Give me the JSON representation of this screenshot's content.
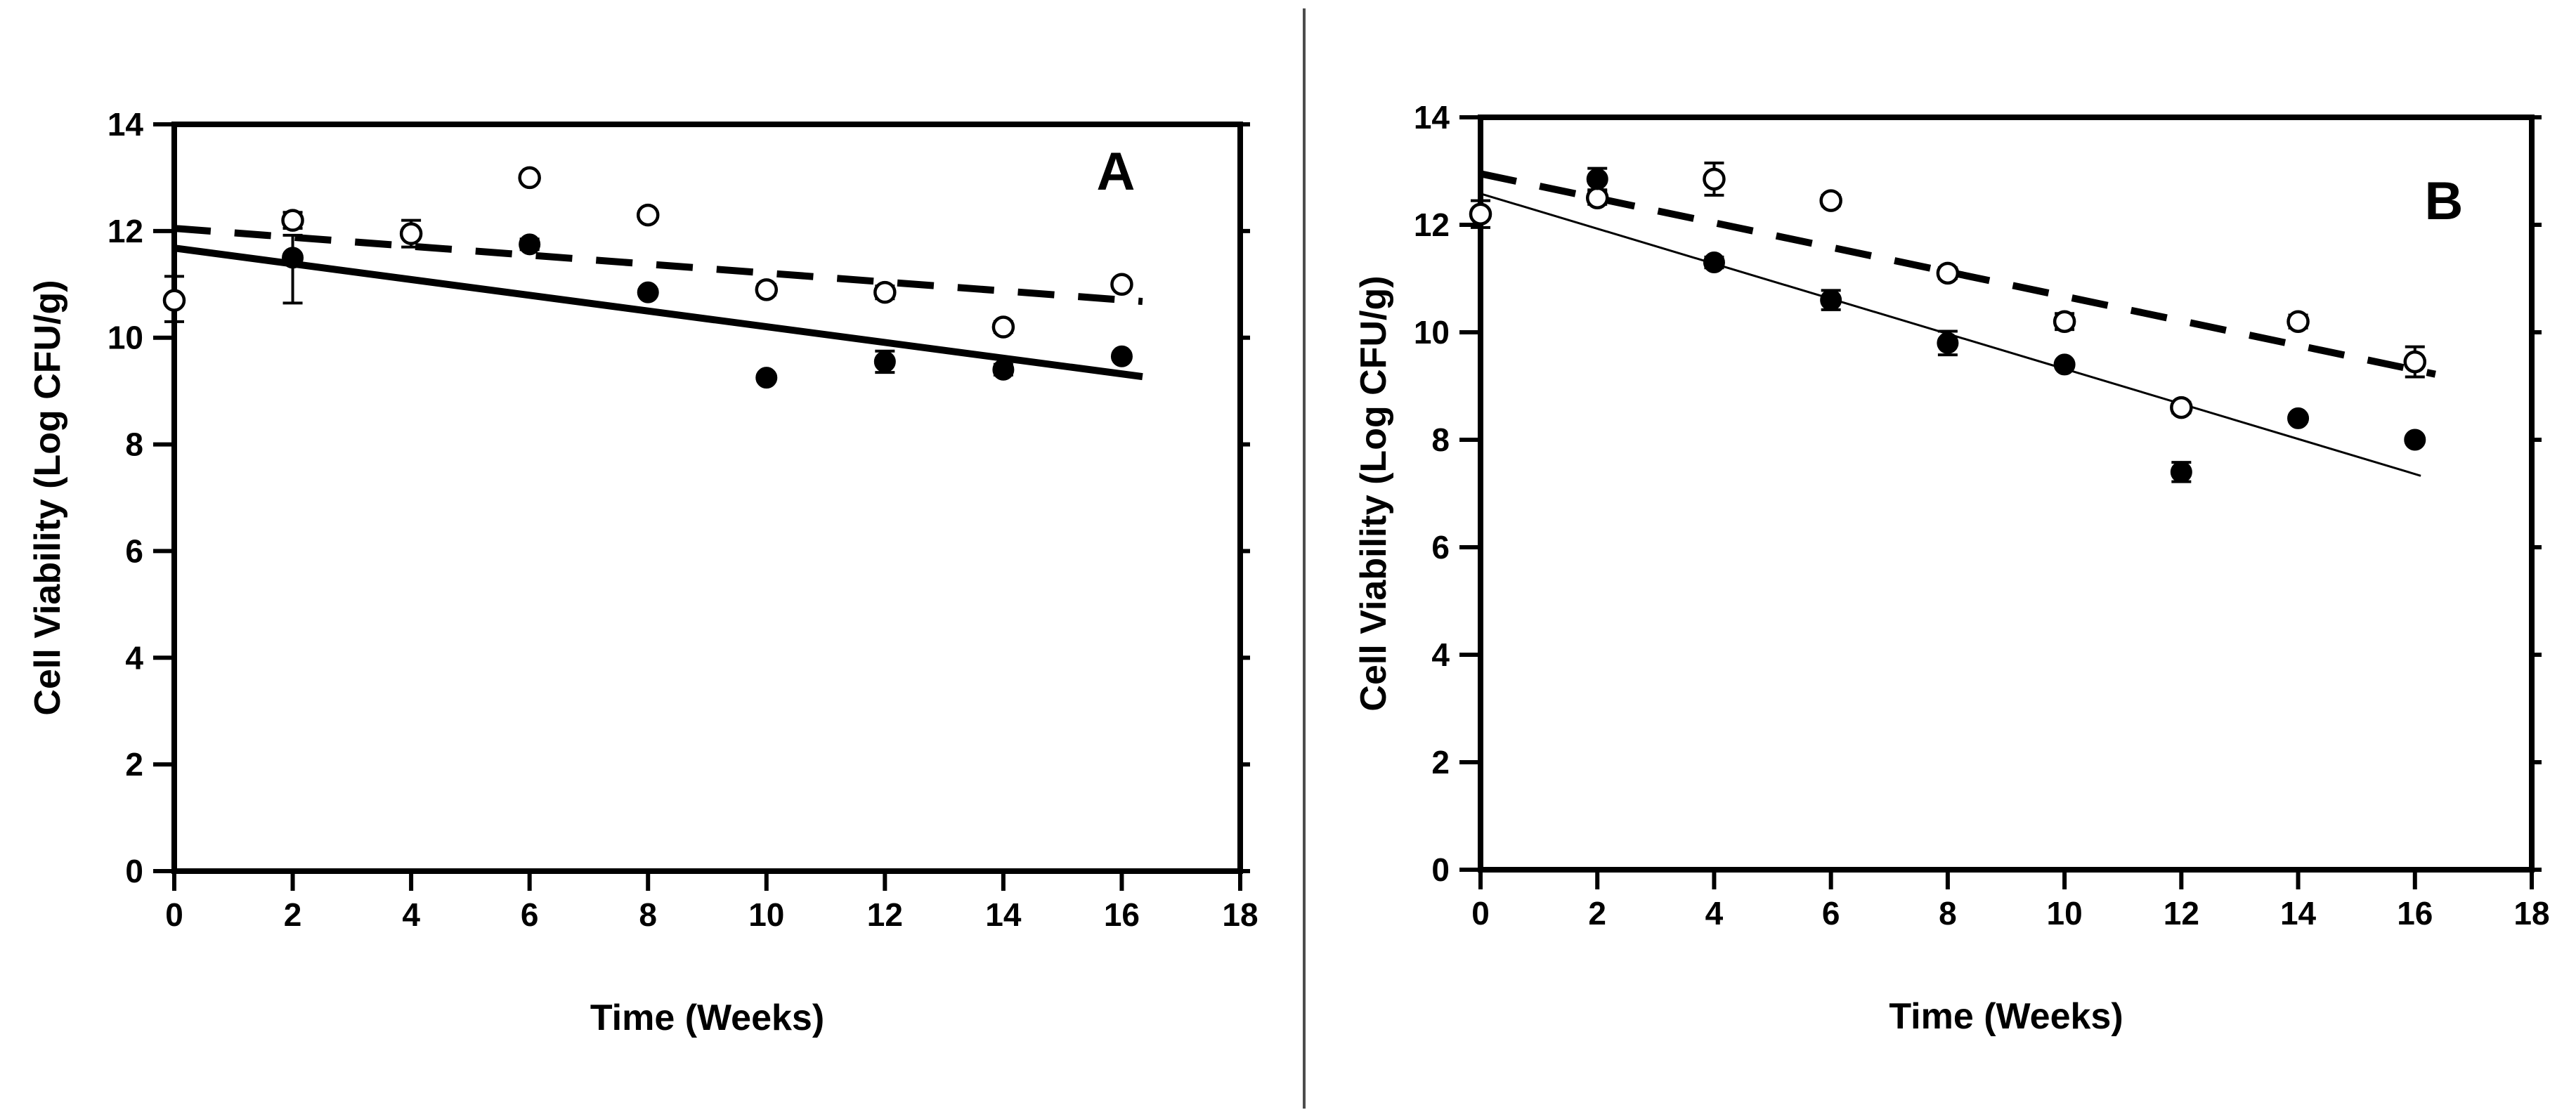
{
  "figure": {
    "background": "#ffffff",
    "ink_color": "#000000",
    "divider_color": "#4d4d4d",
    "marker_fill_open": "#ffffff",
    "marker_fill_filled": "#000000"
  },
  "chart_data": {
    "type": "scatter",
    "panels": [
      {
        "panel_label": "A",
        "xlabel": "Time (Weeks)",
        "ylabel": "Cell Viability (Log CFU/g)",
        "xlim": [
          0,
          18
        ],
        "ylim": [
          0,
          14
        ],
        "xticks": [
          0,
          2,
          4,
          6,
          8,
          10,
          12,
          14,
          16,
          18
        ],
        "yticks": [
          0,
          2,
          4,
          6,
          8,
          10,
          12,
          14
        ],
        "grid": false,
        "legend": "none",
        "series": [
          {
            "name": "open-circles",
            "marker": "open-circle",
            "x": [
              0,
              2,
              4,
              6,
              8,
              10,
              12,
              14,
              16
            ],
            "y": [
              10.7,
              12.2,
              11.95,
              13.0,
              12.3,
              10.9,
              10.85,
              10.2,
              11.0
            ],
            "yerr": [
              [
                0.4,
                0.45
              ],
              0.15,
              0.25,
              0.08,
              0,
              0.1,
              0.12,
              0.1,
              0
            ]
          },
          {
            "name": "filled-circles",
            "marker": "filled-circle",
            "x": [
              2,
              6,
              8,
              10,
              12,
              14,
              16
            ],
            "y": [
              11.5,
              11.75,
              10.85,
              9.25,
              9.55,
              9.4,
              9.65
            ],
            "yerr": [
              [
                0.85,
                0.42
              ],
              0.1,
              0,
              0,
              0.2,
              0.1,
              0
            ]
          }
        ],
        "fit_lines": [
          {
            "series": "open-circles",
            "style": "dashed",
            "x1": 0,
            "y1": 12.05,
            "x2": 16.35,
            "y2": 10.68,
            "width": 10
          },
          {
            "series": "filled-circles",
            "style": "solid",
            "x1": 0,
            "y1": 11.68,
            "x2": 16.35,
            "y2": 9.27,
            "width": 10
          }
        ]
      },
      {
        "panel_label": "B",
        "xlabel": "Time (Weeks)",
        "ylabel": "Cell Viability (Log CFU/g)",
        "xlim": [
          0,
          18
        ],
        "ylim": [
          0,
          14
        ],
        "xticks": [
          0,
          2,
          4,
          6,
          8,
          10,
          12,
          14,
          16,
          18
        ],
        "yticks": [
          0,
          2,
          4,
          6,
          8,
          10,
          12,
          14
        ],
        "grid": false,
        "legend": "none",
        "series": [
          {
            "name": "open-circles",
            "marker": "open-circle",
            "x": [
              0,
              2,
              4,
              6,
              8,
              10,
              12,
              14,
              16
            ],
            "y": [
              12.2,
              12.5,
              12.85,
              12.45,
              11.1,
              10.2,
              8.6,
              10.2,
              9.45
            ],
            "yerr": [
              0.25,
              0.12,
              0.3,
              0.1,
              0.1,
              0.15,
              0.1,
              0.12,
              0.28
            ]
          },
          {
            "name": "filled-circles",
            "marker": "filled-circle",
            "x": [
              2,
              4,
              6,
              8,
              10,
              12,
              14,
              16
            ],
            "y": [
              12.85,
              11.3,
              10.6,
              9.8,
              9.4,
              7.4,
              8.4,
              8.0
            ],
            "yerr": [
              0.2,
              0.1,
              0.18,
              0.22,
              0,
              0.18,
              0,
              0
            ]
          }
        ],
        "fit_lines": [
          {
            "series": "open-circles",
            "style": "dashed",
            "x1": 0,
            "y1": 12.95,
            "x2": 16.35,
            "y2": 9.22,
            "width": 10
          },
          {
            "series": "filled-circles",
            "style": "solid",
            "x1": 0,
            "y1": 12.58,
            "x2": 16.1,
            "y2": 7.33,
            "width": 3
          }
        ]
      }
    ]
  }
}
